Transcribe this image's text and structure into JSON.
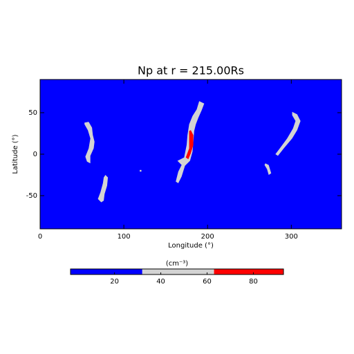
{
  "chart_data": {
    "type": "contour",
    "title": "Np at r = 215.00Rs",
    "xlabel": "Longitude (°)",
    "ylabel": "Latitude (°)",
    "xlim": [
      0,
      360
    ],
    "ylim": [
      -90,
      90
    ],
    "xticks": [
      0,
      100,
      200,
      300
    ],
    "yticks": [
      -50,
      0,
      50
    ],
    "background": "#0000ff",
    "regions": [
      {
        "color": "#d3d3d3",
        "lon": [
          53,
          58,
          62,
          63,
          65,
          64,
          60,
          60,
          56,
          54,
          58,
          60,
          57,
          53
        ],
        "lat": [
          38,
          39,
          32,
          23,
          15,
          7,
          -2,
          -11,
          -9,
          -3,
          7,
          19,
          29,
          36
        ]
      },
      {
        "color": "#d3d3d3",
        "lon": [
          78,
          81,
          80,
          77,
          76,
          73,
          69,
          72,
          75,
          76
        ],
        "lat": [
          -25,
          -28,
          -38,
          -48,
          -56,
          -58,
          -54,
          -46,
          -35,
          -28
        ]
      },
      {
        "color": "#d3d3d3",
        "lon": [
          119,
          121,
          121,
          119
        ],
        "lat": [
          -19,
          -19,
          -21,
          -21
        ]
      },
      {
        "color": "#d3d3d3",
        "lon": [
          190,
          196,
          193,
          189,
          186,
          184,
          183,
          182,
          179,
          173,
          169,
          165,
          162,
          165,
          169,
          164,
          172,
          175,
          176,
          178,
          182,
          187
        ],
        "lat": [
          64,
          61,
          53,
          44,
          36,
          28,
          15,
          3,
          -8,
          -14,
          -27,
          -35,
          -33,
          -21,
          -13,
          -8,
          -4,
          11,
          23,
          36,
          46,
          54
        ]
      },
      {
        "color": "#ff0000",
        "lon": [
          180,
          183,
          183,
          180,
          177,
          174,
          178,
          178,
          178
        ],
        "lat": [
          29,
          23,
          11,
          1,
          -6,
          -4,
          7,
          19,
          28
        ]
      },
      {
        "color": "#d3d3d3",
        "lon": [
          301,
          307,
          311,
          307,
          301,
          291,
          284,
          281,
          287,
          295,
          302,
          305,
          301
        ],
        "lat": [
          51,
          48,
          40,
          29,
          19,
          7,
          -2,
          0,
          8,
          19,
          31,
          40,
          47
        ]
      },
      {
        "color": "#d3d3d3",
        "lon": [
          269,
          273,
          276,
          273,
          271,
          268
        ],
        "lat": [
          -11,
          -13,
          -23,
          -25,
          -18,
          -13
        ]
      }
    ],
    "colorbar": {
      "label": "(cm⁻³)",
      "clim": [
        1,
        93
      ],
      "ticks": [
        20,
        40,
        60,
        80
      ],
      "bands": [
        {
          "from": 1,
          "to": 32,
          "color": "#0000ff"
        },
        {
          "from": 32,
          "to": 63,
          "color": "#d3d3d3"
        },
        {
          "from": 63,
          "to": 93,
          "color": "#ff0000"
        }
      ]
    }
  }
}
